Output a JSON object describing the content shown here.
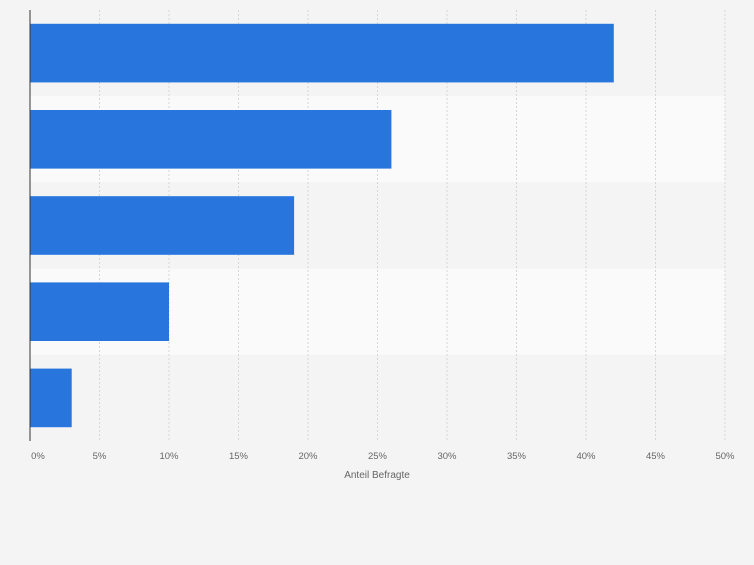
{
  "chart_data": {
    "type": "bar",
    "orientation": "horizontal",
    "categories": [
      "",
      "",
      "",
      "",
      ""
    ],
    "values": [
      42,
      26,
      19,
      10,
      3
    ],
    "value_unit": "%",
    "xlim": [
      0,
      50
    ],
    "x_ticks": [
      "0%",
      "5%",
      "10%",
      "15%",
      "20%",
      "25%",
      "30%",
      "35%",
      "40%",
      "45%",
      "50%"
    ],
    "xlabel": "Anteil Befragte",
    "ylabel": "",
    "title": "",
    "grid": "vertical dashed",
    "legend": "none",
    "bar_color": "#2876dd"
  }
}
